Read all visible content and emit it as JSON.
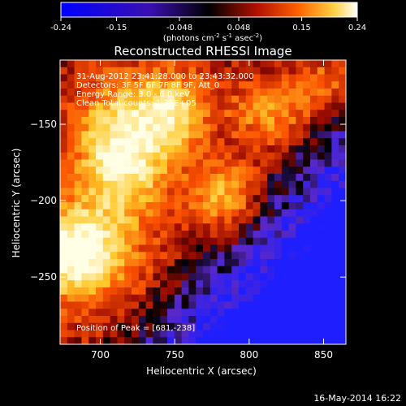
{
  "colorbar": {
    "ticks": [
      "-0.24",
      "-0.15",
      "-0.048",
      "0.048",
      "0.15",
      "0.24"
    ],
    "units_prefix": "(photons cm",
    "units_exp1": "-2",
    "units_mid1": " s",
    "units_exp2": "-1",
    "units_mid2": " asec",
    "units_exp3": "-2",
    "units_suffix": ")"
  },
  "chart_data": {
    "type": "heatmap",
    "title": "Reconstructed RHESSI Image",
    "xlabel": "Heliocentric X (arcsec)",
    "ylabel": "Heliocentric Y (arcsec)",
    "xlim": [
      673,
      865
    ],
    "ylim": [
      -294,
      -108
    ],
    "x_ticks": [
      700,
      750,
      800,
      850
    ],
    "y_ticks": [
      -150,
      -200,
      -250
    ],
    "color_range": [
      -0.24,
      0.24
    ],
    "peak": [
      681,
      -238
    ],
    "annotations": [
      "31-Aug-2012 23:41:28.000 to 23:43:32.000",
      "Detectors: 3F 5F 6F 7F 8F 9F, Att_0",
      "Energy Range: 3.0 - 6.0 keV",
      "Clean     Total counts: 1.35E+05",
      "Position of Peak = [681,-238]"
    ]
  },
  "footer": {
    "date": "16-May-2014 16:22"
  }
}
